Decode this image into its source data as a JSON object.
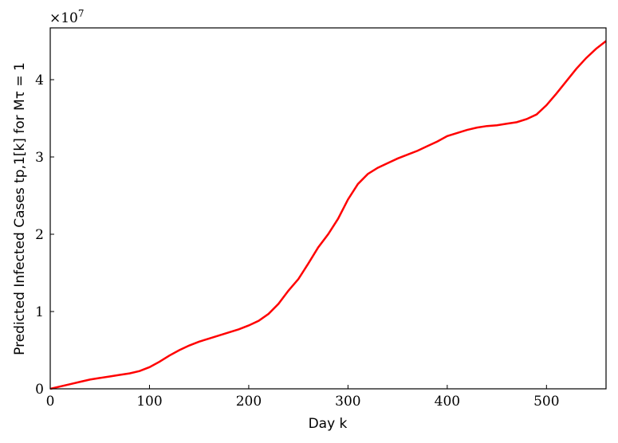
{
  "chart_data": {
    "type": "line",
    "x_label": "Day k",
    "y_label": "Predicted Infected Cases tp,1[k] for Mτ = 1",
    "y_offset_label": {
      "base": "×10",
      "exponent": "7"
    },
    "x": [
      0,
      10,
      20,
      30,
      40,
      50,
      60,
      70,
      80,
      90,
      100,
      110,
      120,
      130,
      140,
      150,
      160,
      170,
      180,
      190,
      200,
      210,
      220,
      230,
      240,
      250,
      260,
      270,
      280,
      290,
      300,
      310,
      320,
      330,
      340,
      350,
      360,
      370,
      380,
      390,
      400,
      410,
      420,
      430,
      440,
      450,
      460,
      470,
      480,
      490,
      500,
      510,
      520,
      530,
      540,
      550,
      560
    ],
    "series": [
      {
        "color": "#ff0000",
        "values": [
          0,
          0.03,
          0.06,
          0.09,
          0.12,
          0.14,
          0.16,
          0.18,
          0.2,
          0.23,
          0.28,
          0.35,
          0.43,
          0.5,
          0.56,
          0.61,
          0.65,
          0.69,
          0.73,
          0.77,
          0.82,
          0.88,
          0.97,
          1.1,
          1.27,
          1.42,
          1.62,
          1.83,
          2.0,
          2.2,
          2.45,
          2.65,
          2.78,
          2.86,
          2.92,
          2.98,
          3.03,
          3.08,
          3.14,
          3.2,
          3.27,
          3.31,
          3.35,
          3.38,
          3.4,
          3.41,
          3.43,
          3.45,
          3.49,
          3.55,
          3.67,
          3.82,
          3.98,
          4.14,
          4.28,
          4.4,
          4.5
        ]
      }
    ],
    "xlim": [
      0,
      560
    ],
    "xticks": [
      0,
      100,
      200,
      300,
      400,
      500
    ],
    "ylim": [
      0,
      4.67
    ],
    "yticks": [
      0,
      1,
      2,
      3,
      4
    ],
    "grid": false
  }
}
